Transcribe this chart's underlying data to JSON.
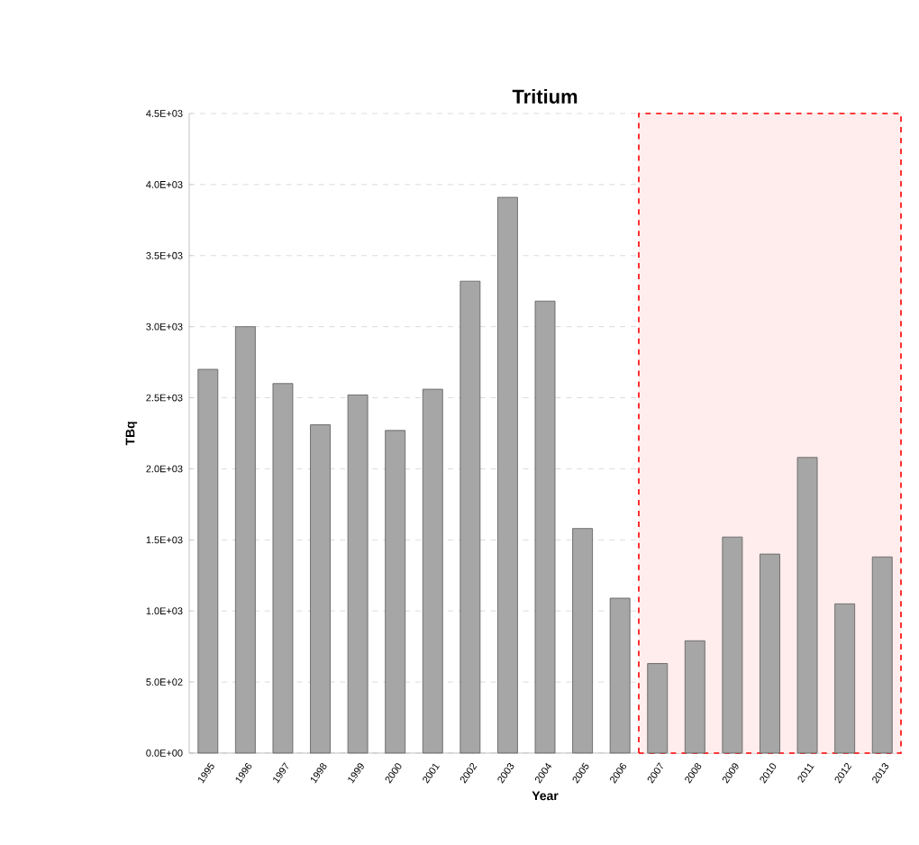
{
  "chart_data": {
    "type": "bar",
    "title": "Tritium",
    "xlabel": "Year",
    "ylabel": "TBq",
    "categories": [
      "1995",
      "1996",
      "1997",
      "1998",
      "1999",
      "2000",
      "2001",
      "2002",
      "2003",
      "2004",
      "2005",
      "2006",
      "2007",
      "2008",
      "2009",
      "2010",
      "2011",
      "2012",
      "2013"
    ],
    "values": [
      2700,
      3000,
      2600,
      2310,
      2520,
      2270,
      2560,
      3320,
      3910,
      3180,
      1580,
      1090,
      630,
      790,
      1520,
      1400,
      2080,
      1050,
      1380
    ],
    "color": "#a6a6a6",
    "ylim": [
      0,
      4500
    ],
    "yticks": [
      {
        "value": 0,
        "label": "0.0E+00"
      },
      {
        "value": 500,
        "label": "5.0E+02"
      },
      {
        "value": 1000,
        "label": "1.0E+03"
      },
      {
        "value": 1500,
        "label": "1.5E+03"
      },
      {
        "value": 2000,
        "label": "2.0E+03"
      },
      {
        "value": 2500,
        "label": "2.5E+03"
      },
      {
        "value": 3000,
        "label": "3.0E+03"
      },
      {
        "value": 3500,
        "label": "3.5E+03"
      },
      {
        "value": 4000,
        "label": "4.0E+03"
      },
      {
        "value": 4500,
        "label": "4.5E+03"
      }
    ],
    "grid": "y",
    "bands": [
      {
        "axis": "x",
        "from": "2007",
        "to": "2013",
        "color": "#ff0000"
      }
    ]
  }
}
